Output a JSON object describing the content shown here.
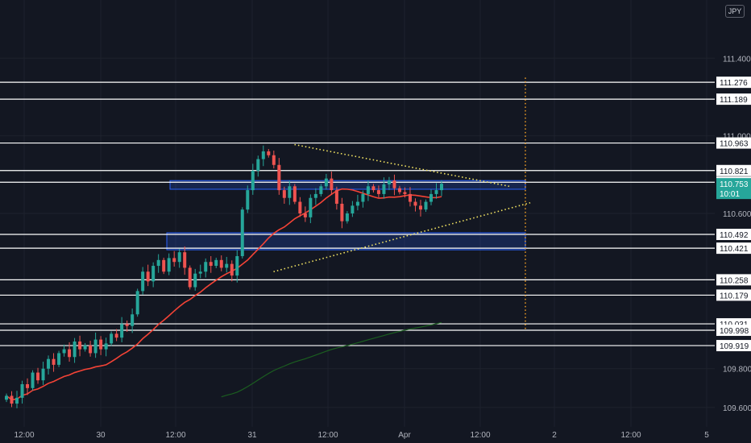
{
  "currency": "JPY",
  "current_price": "110.753",
  "countdown": "10:01",
  "colors": {
    "background": "#131722",
    "grid": "#1e222d",
    "up": "#26a69a",
    "down": "#ef5350",
    "sma_fast": "#f44336",
    "sma_slow": "#1b5e20",
    "hline": "#ffffff",
    "zone": "#2962ff",
    "trendline": "#f5e663",
    "projection": "#ffa726",
    "price_tag": "#26a69a"
  },
  "chart_data": {
    "type": "candlestick",
    "symbol_currency": "JPY",
    "ylim": [
      109.5,
      111.7
    ],
    "price_axis_ticks": [
      "111.400",
      "111.000",
      "110.600",
      "109.800",
      "109.600"
    ],
    "time_axis_ticks": [
      "12:00",
      "30",
      "12:00",
      "31",
      "12:00",
      "Apr",
      "12:00",
      "2",
      "12:00",
      "5"
    ],
    "horizontal_levels": [
      "111.276",
      "111.189",
      "110.963",
      "110.821",
      "110.761",
      "110.492",
      "110.421",
      "110.258",
      "110.179",
      "110.031",
      "109.998",
      "109.919"
    ],
    "zones": [
      {
        "top": 110.761,
        "bottom": 110.733
      },
      {
        "top": 110.492,
        "bottom": 110.421
      }
    ],
    "triangle": {
      "upper_line": [
        {
          "bar": 0.55,
          "price": 110.955
        },
        {
          "bar": 0.96,
          "price": 110.74
        }
      ],
      "lower_line": [
        {
          "bar": 0.51,
          "price": 110.3
        },
        {
          "bar": 1.0,
          "price": 110.655
        }
      ]
    },
    "projection_span": [
      111.3,
      110.0
    ],
    "series": [
      {
        "kind": "ohlc",
        "close": [
          109.66,
          109.62,
          109.65,
          109.72,
          109.7,
          109.78,
          109.74,
          109.8,
          109.85,
          109.82,
          109.88,
          109.9,
          109.86,
          109.94,
          109.9,
          109.92,
          109.88,
          109.95,
          109.9,
          109.93,
          109.98,
          109.96,
          110.03,
          110.02,
          110.08,
          110.2,
          110.3,
          110.25,
          110.33,
          110.36,
          110.3,
          110.37,
          110.35,
          110.4,
          110.32,
          110.22,
          110.29,
          110.3,
          110.35,
          110.33,
          110.36,
          110.32,
          110.34,
          110.28,
          110.38,
          110.62,
          110.72,
          110.82,
          110.88,
          110.92,
          110.9,
          110.85,
          110.72,
          110.68,
          110.74,
          110.66,
          110.6,
          110.58,
          110.68,
          110.7,
          110.74,
          110.78,
          110.72,
          110.65,
          110.56,
          110.6,
          110.64,
          110.66,
          110.7,
          110.74,
          110.72,
          110.7,
          110.75,
          110.77,
          110.73,
          110.71,
          110.7,
          110.66,
          110.64,
          110.62,
          110.66,
          110.7,
          110.72,
          110.753
        ]
      },
      {
        "kind": "sma",
        "period": 20
      },
      {
        "kind": "sma",
        "period": 100
      }
    ]
  }
}
